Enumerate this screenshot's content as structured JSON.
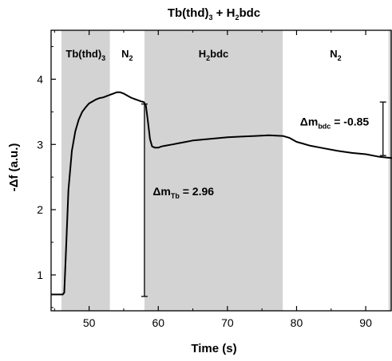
{
  "chart_data": {
    "type": "line",
    "title": {
      "pre": "Tb(thd)",
      "pre_sub": "3",
      "mid": " + H",
      "mid_sub": "2",
      "post": "bdc"
    },
    "xlabel": "Time (s)",
    "ylabel": "-Δf (a.u.)",
    "xlim": [
      44.5,
      93.8
    ],
    "ylim": [
      0.45,
      4.75
    ],
    "x_ticks": [
      50,
      60,
      70,
      80,
      90
    ],
    "y_ticks": [
      1,
      2,
      3,
      4
    ],
    "grid": false,
    "regions": [
      {
        "x0": 46.0,
        "x1": 53.0,
        "shaded": true,
        "label": "Tb(thd)",
        "sub": "3"
      },
      {
        "x0": 53.0,
        "x1": 58.0,
        "shaded": false,
        "label": "N",
        "sub": "2"
      },
      {
        "x0": 58.0,
        "x1": 78.0,
        "shaded": true,
        "label": "H",
        "sub": "2",
        "suffix": "bdc"
      },
      {
        "x0": 78.0,
        "x1": 93.3,
        "shaded": false,
        "label": "N",
        "sub": "2"
      },
      {
        "x0": 93.3,
        "x1": 93.8,
        "shaded": true,
        "label": "",
        "sub": ""
      }
    ],
    "series": [
      {
        "x": [
          44.5,
          45.5,
          46.2,
          46.4,
          46.7,
          47.0,
          47.5,
          48.0,
          48.5,
          49.0,
          49.5,
          50.0,
          50.5,
          51.0,
          51.5,
          52.0,
          52.5,
          53.0,
          53.5,
          54.0,
          54.5,
          55.0,
          55.5,
          56.0,
          56.5,
          57.0,
          57.5,
          57.9,
          58.2,
          58.5,
          58.8,
          59.1,
          59.5,
          60.0,
          60.5,
          61.0,
          62.0,
          63.0,
          64.0,
          65.0,
          66.0,
          68.0,
          70.0,
          72.0,
          74.0,
          76.0,
          78.0,
          79.0,
          80.0,
          82.0,
          84.0,
          86.0,
          88.0,
          90.0,
          92.0,
          93.8
        ],
        "y": [
          0.7,
          0.7,
          0.7,
          0.73,
          1.5,
          2.3,
          2.9,
          3.2,
          3.38,
          3.5,
          3.57,
          3.63,
          3.66,
          3.69,
          3.71,
          3.72,
          3.74,
          3.76,
          3.78,
          3.8,
          3.8,
          3.78,
          3.75,
          3.72,
          3.7,
          3.68,
          3.66,
          3.65,
          3.6,
          3.35,
          3.08,
          2.97,
          2.95,
          2.95,
          2.97,
          2.98,
          3.0,
          3.02,
          3.04,
          3.06,
          3.07,
          3.09,
          3.11,
          3.12,
          3.13,
          3.14,
          3.13,
          3.1,
          3.04,
          2.98,
          2.94,
          2.9,
          2.87,
          2.85,
          2.81,
          2.79
        ]
      }
    ],
    "annotations": [
      {
        "delta": "Δm",
        "sub": "Tb",
        "value": " = 2.96",
        "bar_x": 58.0,
        "y0": 0.67,
        "y1": 3.62,
        "text_x": 59.2,
        "text_y": 2.22
      },
      {
        "delta": "Δm",
        "sub": "bdc",
        "value": " = -0.85",
        "bar_x": 92.5,
        "y0": 2.83,
        "y1": 3.65,
        "text_x": 80.5,
        "text_y": 3.29
      }
    ]
  }
}
